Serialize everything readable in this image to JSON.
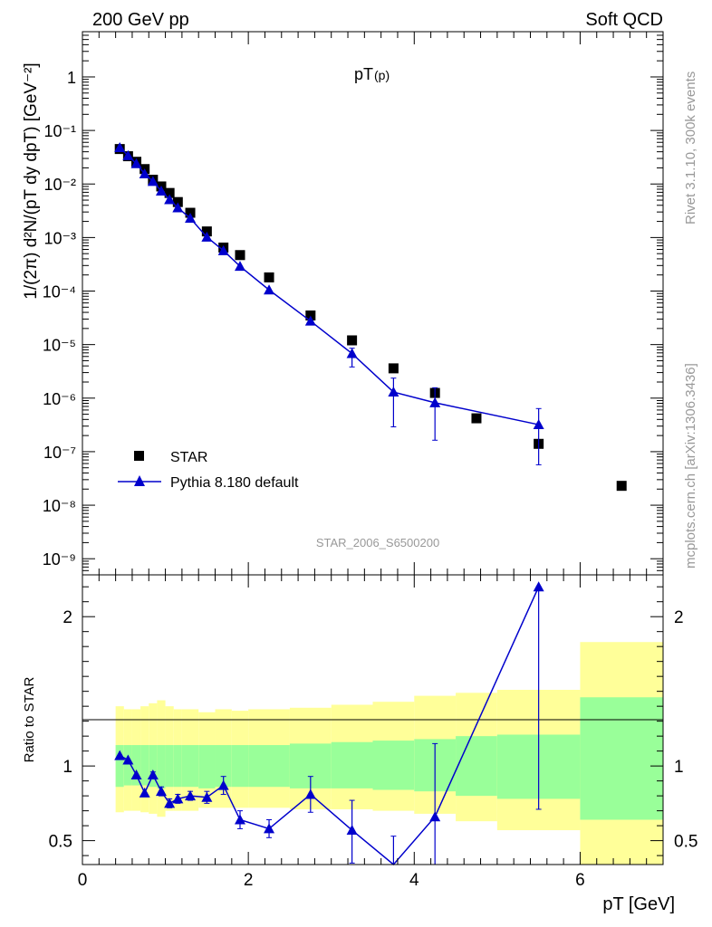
{
  "header": {
    "left": "200 GeV pp",
    "right": "Soft QCD"
  },
  "plot_title": "pT",
  "plot_title_sub": "(p)",
  "side_right_top": "Rivet 3.1.10,  300k events",
  "side_right_bottom": "mcplots.cern.ch [arXiv:1306.3436]",
  "analysis_tag": "STAR_2006_S6500200",
  "top_ylabel": "1/(2π) d²N/(pT dy dpT) [GeV⁻²]",
  "bottom_ylabel": "Ratio to STAR",
  "xlabel": "pT [GeV]",
  "legend": {
    "data_label": "STAR",
    "mc_label": "Pythia 8.180 default"
  },
  "colors": {
    "data": "#000000",
    "mc": "#0000cc",
    "band_inner": "#99ff99",
    "band_outer": "#ffff99"
  },
  "chart_data": [
    {
      "type": "scatter",
      "title": "pT(p)",
      "xlabel": "pT [GeV]",
      "ylabel": "1/(2π) d²N/(pT dy dpT) [GeV⁻²]",
      "xlim": [
        0,
        7
      ],
      "ylim": [
        5e-10,
        7
      ],
      "log_y": true,
      "x_ticks": [
        "0",
        "2",
        "4",
        "6"
      ],
      "y_ticks": [
        "10⁻⁹",
        "10⁻⁸",
        "10⁻⁷",
        "10⁻⁶",
        "10⁻⁵",
        "10⁻⁴",
        "10⁻³",
        "10⁻²",
        "10⁻¹",
        "1"
      ],
      "legend_position": "bottom-left",
      "series": [
        {
          "name": "STAR",
          "x": [
            0.45,
            0.55,
            0.65,
            0.75,
            0.85,
            0.95,
            1.05,
            1.15,
            1.3,
            1.5,
            1.7,
            1.9,
            2.25,
            2.75,
            3.25,
            3.75,
            4.25,
            4.75,
            5.5,
            6.5
          ],
          "y": [
            0.045,
            0.033,
            0.026,
            0.019,
            0.012,
            0.009,
            0.0068,
            0.0046,
            0.0029,
            0.0013,
            0.00065,
            0.00047,
            0.00018,
            3.5e-05,
            1.2e-05,
            3.6e-06,
            1.25e-06,
            4.2e-07,
            1.4e-07,
            2.3e-08
          ]
        },
        {
          "name": "Pythia 8.180 default",
          "x": [
            0.45,
            0.55,
            0.65,
            0.75,
            0.85,
            0.95,
            1.05,
            1.15,
            1.3,
            1.5,
            1.7,
            1.9,
            2.25,
            2.75,
            3.25,
            3.75,
            4.25,
            5.5
          ],
          "y": [
            0.048,
            0.034,
            0.024,
            0.0155,
            0.0112,
            0.0074,
            0.0051,
            0.0036,
            0.0023,
            0.00102,
            0.00057,
            0.00029,
            0.000105,
            2.75e-05,
            6.8e-06,
            1.3e-06,
            8.2e-07,
            3.2e-07
          ],
          "y_err": [
            0,
            0,
            0,
            0,
            0,
            0,
            0,
            0,
            0,
            0,
            0,
            0,
            0,
            0,
            0.25,
            0.65,
            0.7,
            0.75
          ]
        }
      ]
    },
    {
      "type": "line",
      "title": "",
      "xlabel": "pT [GeV]",
      "ylabel": "Ratio to STAR",
      "xlim": [
        0,
        7
      ],
      "ylim": [
        0.34,
        2.28
      ],
      "y_ticks": [
        "0.5",
        "1",
        "2"
      ],
      "reference_line": 1,
      "series": [
        {
          "name": "Pythia 8.180 default",
          "x": [
            0.45,
            0.55,
            0.65,
            0.75,
            0.85,
            0.95,
            1.05,
            1.15,
            1.3,
            1.5,
            1.7,
            1.9,
            2.25,
            2.75,
            3.25,
            3.75,
            4.25,
            5.5
          ],
          "y": [
            1.07,
            1.04,
            0.94,
            0.82,
            0.94,
            0.83,
            0.75,
            0.78,
            0.8,
            0.79,
            0.87,
            0.64,
            0.58,
            0.81,
            0.57,
            0.33,
            0.66,
            2.2
          ],
          "y_err_low": [
            0,
            0,
            0,
            0,
            0.02,
            0.03,
            0.03,
            0.03,
            0.03,
            0.04,
            0.06,
            0.06,
            0.06,
            0.12,
            0.22,
            0.2,
            0.33,
            1.49
          ],
          "y_err_high": [
            0,
            0,
            0,
            0,
            0.02,
            0.03,
            0.03,
            0.03,
            0.03,
            0.04,
            0.06,
            0.06,
            0.06,
            0.12,
            0.2,
            0.2,
            0.49,
            0
          ]
        }
      ],
      "bands": {
        "x_edges": [
          0.4,
          0.5,
          0.6,
          0.7,
          0.8,
          0.9,
          1.0,
          1.1,
          1.2,
          1.4,
          1.6,
          1.8,
          2.0,
          2.5,
          3.0,
          3.5,
          4.0,
          4.5,
          5.0,
          6.0,
          7.0
        ],
        "inner_low": [
          0.86,
          0.87,
          0.87,
          0.87,
          0.86,
          0.85,
          0.86,
          0.86,
          0.86,
          0.85,
          0.86,
          0.86,
          0.86,
          0.85,
          0.85,
          0.84,
          0.83,
          0.8,
          0.78,
          0.64
        ],
        "inner_high": [
          1.14,
          1.14,
          1.14,
          1.14,
          1.14,
          1.14,
          1.14,
          1.14,
          1.14,
          1.14,
          1.14,
          1.14,
          1.14,
          1.15,
          1.16,
          1.17,
          1.18,
          1.2,
          1.21,
          1.46
        ],
        "outer_low": [
          0.69,
          0.7,
          0.7,
          0.69,
          0.68,
          0.66,
          0.7,
          0.7,
          0.7,
          0.72,
          0.72,
          0.72,
          0.72,
          0.71,
          0.71,
          0.7,
          0.68,
          0.63,
          0.57,
          0.2
        ],
        "outer_high": [
          1.4,
          1.38,
          1.38,
          1.4,
          1.42,
          1.44,
          1.4,
          1.38,
          1.38,
          1.36,
          1.38,
          1.37,
          1.38,
          1.39,
          1.41,
          1.43,
          1.47,
          1.49,
          1.51,
          1.83
        ]
      }
    }
  ]
}
